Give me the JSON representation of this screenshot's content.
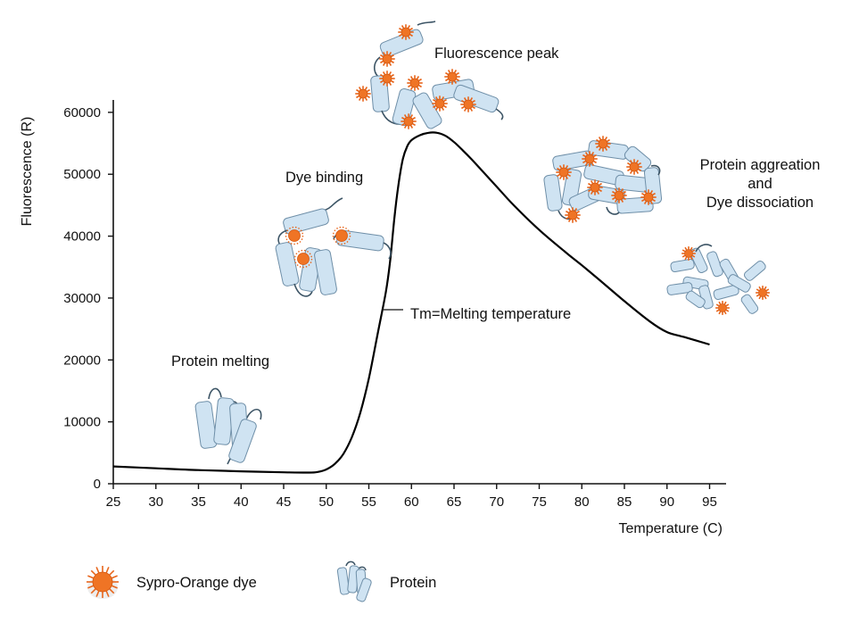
{
  "chart_data": {
    "type": "line",
    "xlabel": "Temperature (C)",
    "ylabel": "Fluorescence (R)",
    "xlim": [
      25,
      96
    ],
    "ylim": [
      0,
      62000
    ],
    "x_ticks": [
      "25",
      "30",
      "35",
      "40",
      "45",
      "50",
      "55",
      "60",
      "65",
      "70",
      "75",
      "80",
      "85",
      "90",
      "95"
    ],
    "y_ticks": [
      "0",
      "10000",
      "20000",
      "30000",
      "40000",
      "50000",
      "60000"
    ],
    "grid": false,
    "series": [
      {
        "x": [
          25,
          30,
          35,
          40,
          45,
          48,
          49,
          50,
          51,
          52,
          53,
          54,
          55,
          56,
          57,
          57.5,
          58,
          58.5,
          59,
          59.5,
          60,
          61,
          62,
          63,
          64,
          65,
          66,
          67,
          68,
          70,
          72,
          75,
          78,
          80,
          82,
          85,
          88,
          90,
          92,
          95
        ],
        "y": [
          2800,
          2500,
          2200,
          2000,
          1850,
          1800,
          1900,
          2300,
          3200,
          4800,
          7500,
          11500,
          17000,
          24000,
          31000,
          36000,
          43000,
          48500,
          52500,
          54500,
          55500,
          56300,
          56700,
          56700,
          56200,
          55200,
          53900,
          52500,
          51000,
          48000,
          45000,
          41000,
          37500,
          35300,
          33000,
          29500,
          26200,
          24500,
          23700,
          22500
        ]
      }
    ],
    "annotations": [
      {
        "text": "Fluorescence peak"
      },
      {
        "text": "Dye binding"
      },
      {
        "text": "Protein melting"
      },
      {
        "text": "Tm=Melting temperature"
      },
      {
        "text": "Protein aggreation"
      },
      {
        "text": "and"
      },
      {
        "text": "Dye dissociation"
      }
    ]
  },
  "legend": {
    "dye_label": "Sypro-Orange dye",
    "protein_label": "Protein"
  },
  "colors": {
    "curve": "#000000",
    "dye": "#ef7425",
    "helix": "#cfe3f2",
    "helix_outline": "#6f8fa8"
  }
}
